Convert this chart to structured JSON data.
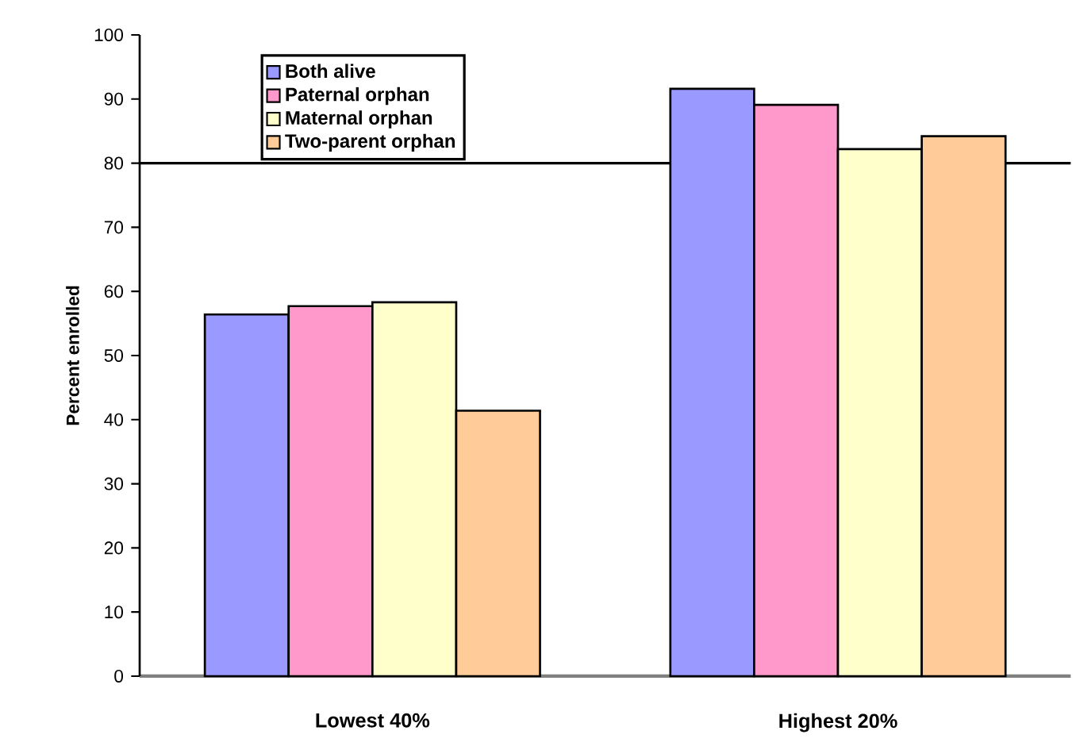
{
  "chart_data": {
    "type": "bar",
    "ylabel": "Percent enrolled",
    "categories": [
      "Lowest 40%",
      "Highest 20%"
    ],
    "series": [
      {
        "name": "Both alive",
        "color": "#9999ff",
        "values": [
          56.4,
          91.6
        ]
      },
      {
        "name": "Paternal orphan",
        "color": "#ff99cc",
        "values": [
          57.7,
          89.1
        ]
      },
      {
        "name": "Maternal orphan",
        "color": "#ffffcc",
        "values": [
          58.3,
          82.2
        ]
      },
      {
        "name": "Two-parent orphan",
        "color": "#ffcc99",
        "values": [
          41.4,
          84.2
        ]
      }
    ],
    "ylim": [
      0,
      100
    ],
    "yticks": [
      0,
      10,
      20,
      30,
      40,
      50,
      60,
      70,
      80,
      90,
      100
    ],
    "legend": "top left",
    "ref_lines": [
      {
        "axis": "y",
        "value": 80,
        "color": "#000000"
      }
    ]
  }
}
